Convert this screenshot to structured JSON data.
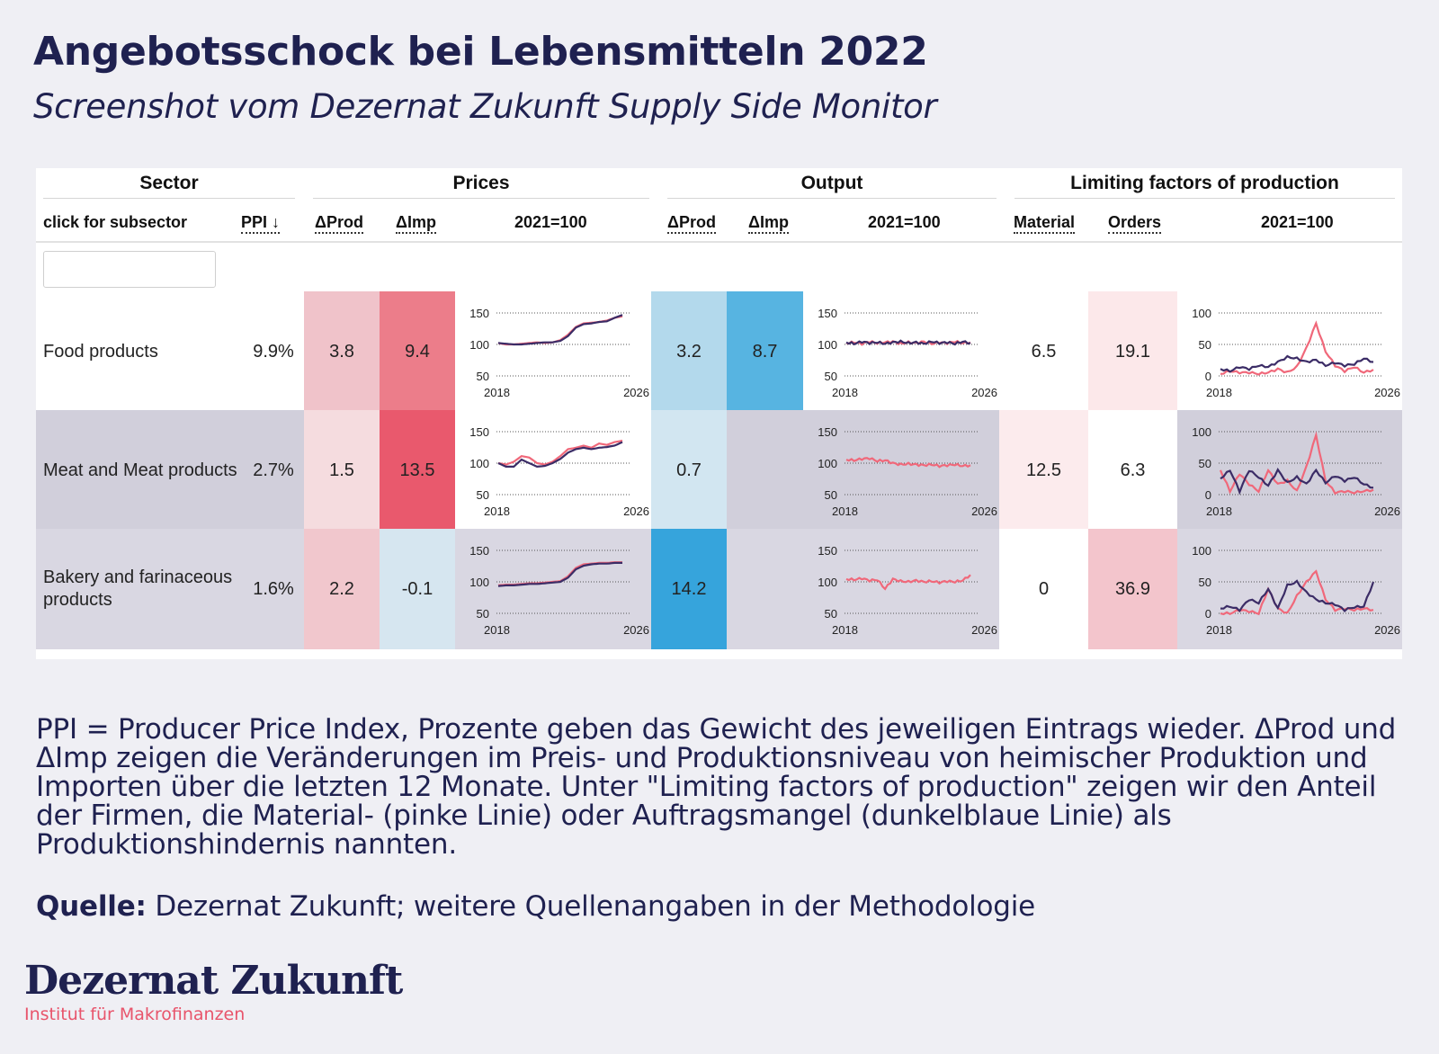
{
  "title": "Angebotsschock bei Lebensmitteln 2022",
  "subtitle": "Screenshot vom Dezernat Zukunft Supply Side Monitor",
  "table": {
    "groups": {
      "sector": "Sector",
      "prices": "Prices",
      "output": "Output",
      "limiting": "Limiting factors of production"
    },
    "columns": {
      "subsector": "click for subsector",
      "ppi": "PPI ↓",
      "prices_prod": "ΔProd",
      "prices_imp": "ΔImp",
      "prices_index": "2021=100",
      "output_prod": "ΔProd",
      "output_imp": "ΔImp",
      "output_index": "2021=100",
      "material": "Material",
      "orders": "Orders",
      "limiting_index": "2021=100"
    },
    "filter_placeholder": "",
    "rows": [
      {
        "name": "Food products",
        "ppi": "9.9%",
        "prices_prod": "3.8",
        "prices_imp": "9.4",
        "output_prod": "3.2",
        "output_imp": "8.7",
        "material": "6.5",
        "orders": "19.1",
        "colors": {
          "row_bg": "#ffffff",
          "prices_prod": "#f0c3ca",
          "prices_imp": "#ec7d8a",
          "output_prod": "#b3d9ec",
          "output_imp": "#57b4e1",
          "material": "#ffffff",
          "orders": "#fce8ea",
          "price_spark_bg": "#ffffff",
          "output_spark_bg": "#ffffff",
          "limit_spark_bg": "#ffffff"
        }
      },
      {
        "name": "Meat and Meat products",
        "ppi": "2.7%",
        "prices_prod": "1.5",
        "prices_imp": "13.5",
        "output_prod": "0.7",
        "output_imp": "",
        "material": "12.5",
        "orders": "6.3",
        "colors": {
          "row_bg": "#d1cfdb",
          "prices_prod": "#f5dcdf",
          "prices_imp": "#e9596d",
          "output_prod": "#d2e6f1",
          "output_imp": "#d1cfdb",
          "material": "#fcebed",
          "orders": "#ffffff",
          "price_spark_bg": "#ffffff",
          "output_spark_bg": "#d1cfdb",
          "limit_spark_bg": "#d1cfdb"
        }
      },
      {
        "name": "Bakery and farinaceous products",
        "ppi": "1.6%",
        "prices_prod": "2.2",
        "prices_imp": "-0.1",
        "output_prod": "14.2",
        "output_imp": "",
        "material": "0",
        "orders": "36.9",
        "colors": {
          "row_bg": "#d9d7e2",
          "prices_prod": "#f1c7cd",
          "prices_imp": "#d6e6f0",
          "output_prod": "#36a4dc",
          "output_imp": "#d9d7e2",
          "material": "#ffffff",
          "orders": "#f3c5cc",
          "price_spark_bg": "#d9d7e2",
          "output_spark_bg": "#d9d7e2",
          "limit_spark_bg": "#d9d7e2"
        }
      }
    ],
    "spark_axes": {
      "price": {
        "yticks": [
          "150",
          "100",
          "50"
        ],
        "xticks": [
          "2018",
          "2026"
        ]
      },
      "output": {
        "yticks": [
          "150",
          "100",
          "50"
        ],
        "xticks": [
          "2018",
          "2026"
        ]
      },
      "limiting": {
        "yticks": [
          "100",
          "50",
          "0"
        ],
        "xticks": [
          "2018",
          "2026"
        ]
      }
    },
    "line_colors": {
      "material": "#f0687a",
      "orders": "#3b2c66"
    }
  },
  "footnote": "PPI = Producer Price Index, Prozente geben das Gewicht des jeweiligen Eintrags wieder. ΔProd und ΔImp zeigen die Veränderungen im Preis- und Produktionsniveau von heimischer Produktion und Importen über die letzten 12 Monate. Unter \"Limiting factors of production\" zeigen wir den Anteil der Firmen, die Material- (pinke Linie) oder Auftragsmangel (dunkelblaue Linie) als Produktionshindernis nannten.",
  "source": {
    "label": "Quelle:",
    "text": " Dezernat Zukunft; weitere Quellenangaben in der Methodologie"
  },
  "logo": {
    "name": "Dezernat Zukunft",
    "tagline": "Institut für Makrofinanzen"
  }
}
